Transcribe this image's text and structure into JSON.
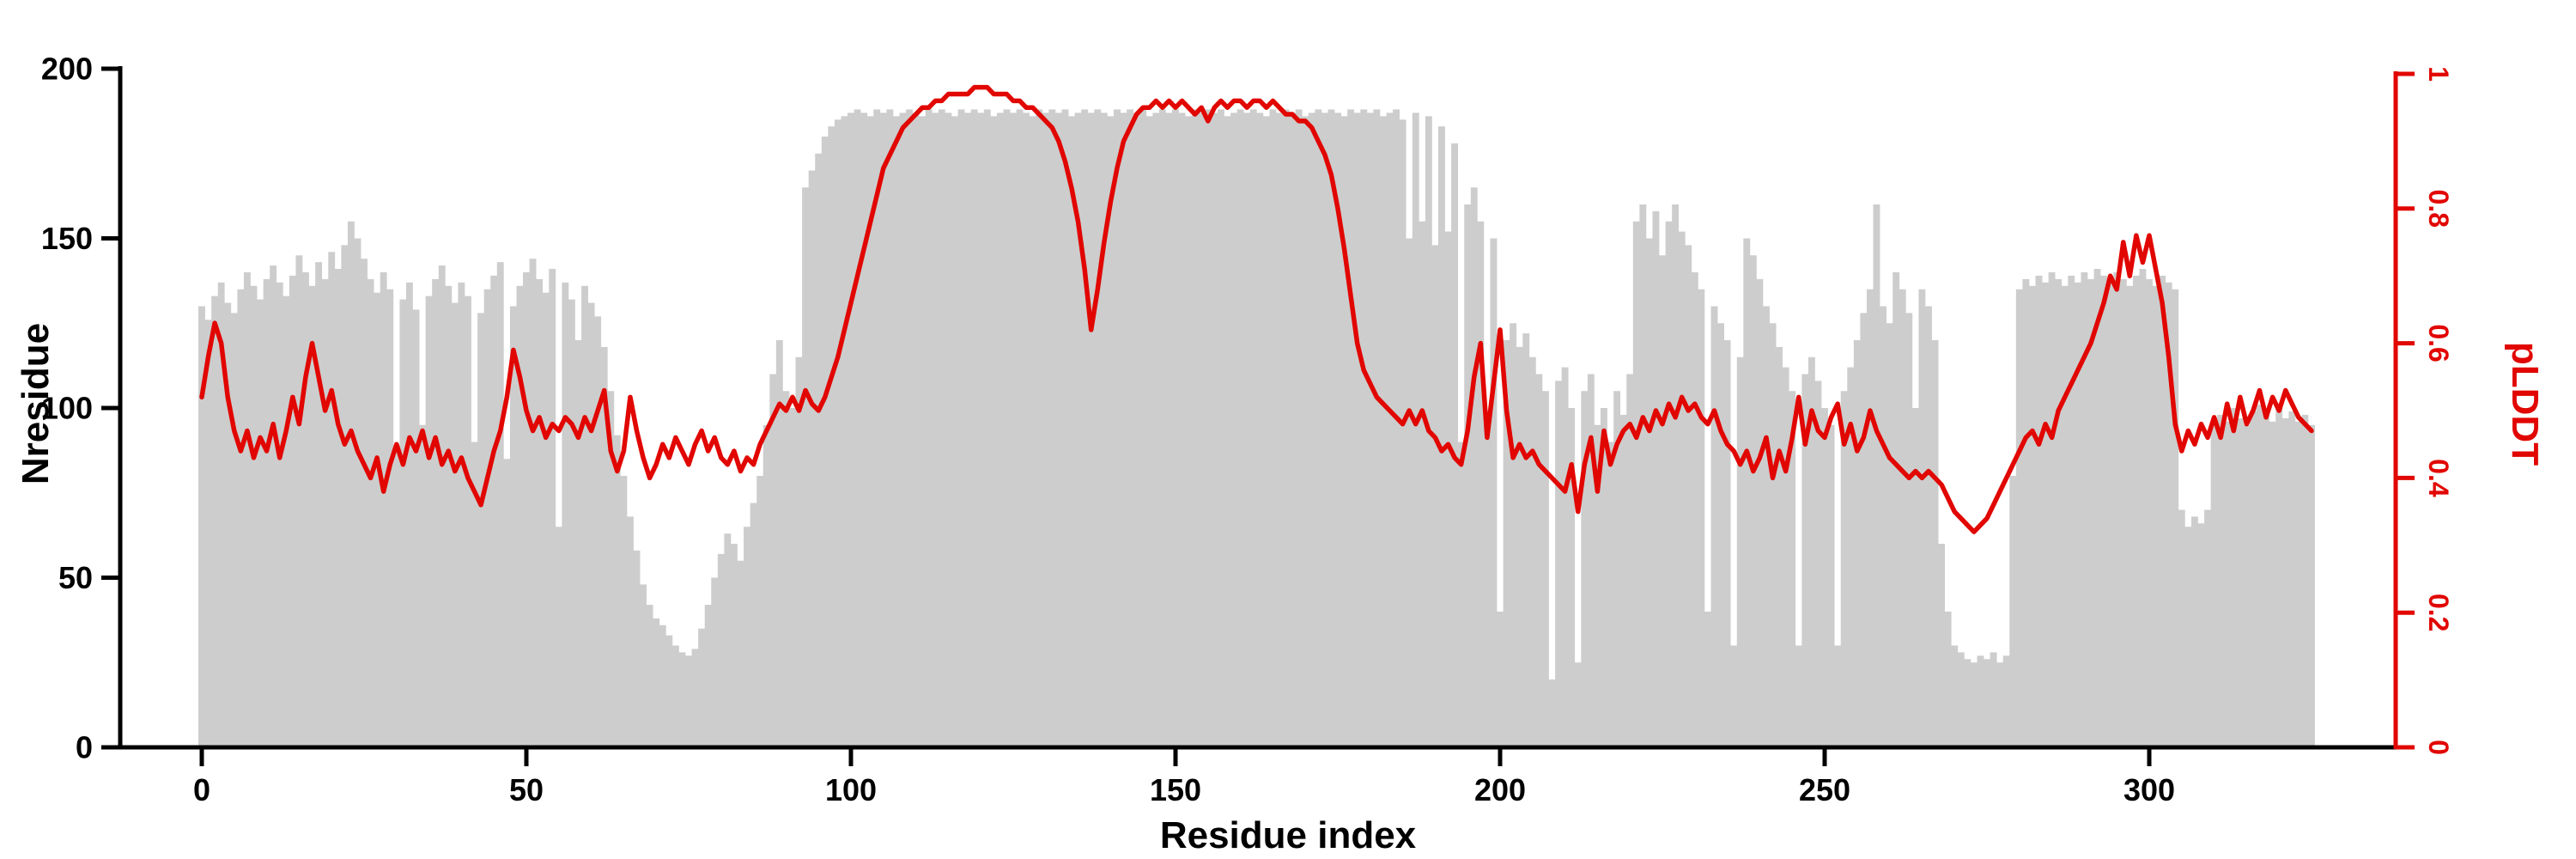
{
  "chart_data": {
    "type": "bar",
    "title": "",
    "xlabel": "Residue index",
    "x_start": 0,
    "x_ticks": [
      0,
      50,
      100,
      150,
      200,
      250,
      300
    ],
    "x_range": [
      0,
      335
    ],
    "left_axis": {
      "label": "Nresidue",
      "ticks": [
        0,
        50,
        100,
        150,
        200
      ],
      "range": [
        0,
        200
      ],
      "color": "#000000"
    },
    "right_axis": {
      "label": "pLDDT",
      "ticks": [
        0,
        0.2,
        0.4,
        0.6,
        0.8,
        1
      ],
      "tick_labels": [
        "0",
        "0.2",
        "0.4",
        "0.6",
        "0.8",
        "1"
      ],
      "range": [
        0,
        1
      ],
      "color": "#e10600"
    },
    "grid": false,
    "legend": "none",
    "series": [
      {
        "name": "Nresidue",
        "type": "bar",
        "axis": "left",
        "color": "#cdcdcd",
        "values": [
          130,
          126,
          133,
          137,
          131,
          128,
          135,
          140,
          136,
          132,
          138,
          142,
          137,
          133,
          139,
          145,
          140,
          136,
          143,
          138,
          146,
          141,
          148,
          155,
          150,
          144,
          138,
          134,
          140,
          135,
          88,
          132,
          137,
          129,
          95,
          133,
          138,
          142,
          136,
          131,
          137,
          133,
          90,
          128,
          135,
          139,
          143,
          85,
          130,
          136,
          140,
          144,
          138,
          134,
          141,
          65,
          137,
          132,
          120,
          136,
          131,
          127,
          118,
          105,
          92,
          80,
          68,
          58,
          48,
          42,
          38,
          36,
          33,
          30,
          28,
          27,
          29,
          35,
          42,
          50,
          57,
          63,
          60,
          55,
          65,
          72,
          80,
          95,
          110,
          120,
          105,
          100,
          115,
          165,
          170,
          175,
          180,
          183,
          185,
          186,
          187,
          188,
          187,
          186,
          188,
          187,
          188,
          186,
          187,
          188,
          187,
          186,
          188,
          187,
          188,
          187,
          186,
          188,
          187,
          188,
          187,
          188,
          186,
          187,
          188,
          187,
          188,
          187,
          186,
          188,
          187,
          188,
          187,
          188,
          186,
          187,
          188,
          187,
          188,
          187,
          186,
          188,
          187,
          188,
          187,
          188,
          186,
          187,
          188,
          187,
          188,
          187,
          186,
          188,
          187,
          188,
          187,
          188,
          186,
          187,
          188,
          187,
          188,
          187,
          186,
          188,
          187,
          188,
          187,
          188,
          186,
          187,
          188,
          187,
          188,
          187,
          186,
          188,
          187,
          188,
          187,
          188,
          186,
          187,
          188,
          185,
          150,
          187,
          155,
          186,
          148,
          183,
          152,
          178,
          90,
          160,
          165,
          155,
          95,
          150,
          40,
          120,
          125,
          118,
          122,
          115,
          110,
          105,
          20,
          108,
          112,
          100,
          25,
          105,
          110,
          95,
          100,
          90,
          105,
          98,
          110,
          155,
          160,
          150,
          158,
          145,
          155,
          160,
          152,
          148,
          140,
          135,
          40,
          130,
          125,
          120,
          30,
          115,
          150,
          145,
          138,
          130,
          125,
          118,
          112,
          105,
          30,
          110,
          115,
          108,
          100,
          95,
          30,
          105,
          112,
          120,
          128,
          135,
          160,
          130,
          125,
          140,
          135,
          128,
          100,
          135,
          130,
          120,
          60,
          40,
          30,
          28,
          26,
          25,
          27,
          26,
          28,
          25,
          27,
          80,
          135,
          138,
          136,
          139,
          137,
          140,
          138,
          136,
          139,
          137,
          140,
          138,
          141,
          139,
          137,
          140,
          138,
          136,
          139,
          141,
          138,
          136,
          139,
          137,
          135,
          70,
          65,
          68,
          66,
          70,
          95,
          98,
          96,
          100,
          97,
          95,
          99,
          101,
          98,
          96,
          100,
          97,
          99,
          96,
          98,
          95
        ]
      },
      {
        "name": "pLDDT",
        "type": "line",
        "axis": "right",
        "color": "#e10600",
        "values": [
          0.52,
          0.58,
          0.63,
          0.6,
          0.52,
          0.47,
          0.44,
          0.47,
          0.43,
          0.46,
          0.44,
          0.48,
          0.43,
          0.47,
          0.52,
          0.48,
          0.55,
          0.6,
          0.55,
          0.5,
          0.53,
          0.48,
          0.45,
          0.47,
          0.44,
          0.42,
          0.4,
          0.43,
          0.38,
          0.42,
          0.45,
          0.42,
          0.46,
          0.44,
          0.47,
          0.43,
          0.46,
          0.42,
          0.44,
          0.41,
          0.43,
          0.4,
          0.38,
          0.36,
          0.4,
          0.44,
          0.47,
          0.52,
          0.59,
          0.55,
          0.5,
          0.47,
          0.49,
          0.46,
          0.48,
          0.47,
          0.49,
          0.48,
          0.46,
          0.49,
          0.47,
          0.5,
          0.53,
          0.44,
          0.41,
          0.44,
          0.52,
          0.47,
          0.43,
          0.4,
          0.42,
          0.45,
          0.43,
          0.46,
          0.44,
          0.42,
          0.45,
          0.47,
          0.44,
          0.46,
          0.43,
          0.42,
          0.44,
          0.41,
          0.43,
          0.42,
          0.45,
          0.47,
          0.49,
          0.51,
          0.5,
          0.52,
          0.5,
          0.53,
          0.51,
          0.5,
          0.52,
          0.55,
          0.58,
          0.62,
          0.66,
          0.7,
          0.74,
          0.78,
          0.82,
          0.86,
          0.88,
          0.9,
          0.92,
          0.93,
          0.94,
          0.95,
          0.95,
          0.96,
          0.96,
          0.97,
          0.97,
          0.97,
          0.97,
          0.98,
          0.98,
          0.98,
          0.97,
          0.97,
          0.97,
          0.96,
          0.96,
          0.95,
          0.95,
          0.94,
          0.93,
          0.92,
          0.9,
          0.87,
          0.83,
          0.78,
          0.71,
          0.62,
          0.68,
          0.75,
          0.81,
          0.86,
          0.9,
          0.92,
          0.94,
          0.95,
          0.95,
          0.96,
          0.95,
          0.96,
          0.95,
          0.96,
          0.95,
          0.94,
          0.95,
          0.93,
          0.95,
          0.96,
          0.95,
          0.96,
          0.96,
          0.95,
          0.96,
          0.96,
          0.95,
          0.96,
          0.95,
          0.94,
          0.94,
          0.93,
          0.93,
          0.92,
          0.9,
          0.88,
          0.85,
          0.8,
          0.74,
          0.67,
          0.6,
          0.56,
          0.54,
          0.52,
          0.51,
          0.5,
          0.49,
          0.48,
          0.5,
          0.48,
          0.5,
          0.47,
          0.46,
          0.44,
          0.45,
          0.43,
          0.42,
          0.47,
          0.55,
          0.6,
          0.46,
          0.54,
          0.62,
          0.5,
          0.43,
          0.45,
          0.43,
          0.44,
          0.42,
          0.41,
          0.4,
          0.39,
          0.38,
          0.42,
          0.35,
          0.42,
          0.46,
          0.38,
          0.47,
          0.42,
          0.45,
          0.47,
          0.48,
          0.46,
          0.49,
          0.47,
          0.5,
          0.48,
          0.51,
          0.49,
          0.52,
          0.5,
          0.51,
          0.49,
          0.48,
          0.5,
          0.47,
          0.45,
          0.44,
          0.42,
          0.44,
          0.41,
          0.43,
          0.46,
          0.4,
          0.44,
          0.41,
          0.46,
          0.52,
          0.45,
          0.5,
          0.47,
          0.46,
          0.49,
          0.51,
          0.45,
          0.48,
          0.44,
          0.46,
          0.5,
          0.47,
          0.45,
          0.43,
          0.42,
          0.41,
          0.4,
          0.41,
          0.4,
          0.41,
          0.4,
          0.39,
          0.37,
          0.35,
          0.34,
          0.33,
          0.32,
          0.33,
          0.34,
          0.36,
          0.38,
          0.4,
          0.42,
          0.44,
          0.46,
          0.47,
          0.45,
          0.48,
          0.46,
          0.5,
          0.52,
          0.54,
          0.56,
          0.58,
          0.6,
          0.63,
          0.66,
          0.7,
          0.68,
          0.75,
          0.7,
          0.76,
          0.72,
          0.76,
          0.71,
          0.66,
          0.58,
          0.48,
          0.44,
          0.47,
          0.45,
          0.48,
          0.46,
          0.49,
          0.46,
          0.51,
          0.47,
          0.52,
          0.48,
          0.5,
          0.53,
          0.49,
          0.52,
          0.5,
          0.53,
          0.51,
          0.49,
          0.48,
          0.47
        ]
      }
    ]
  }
}
